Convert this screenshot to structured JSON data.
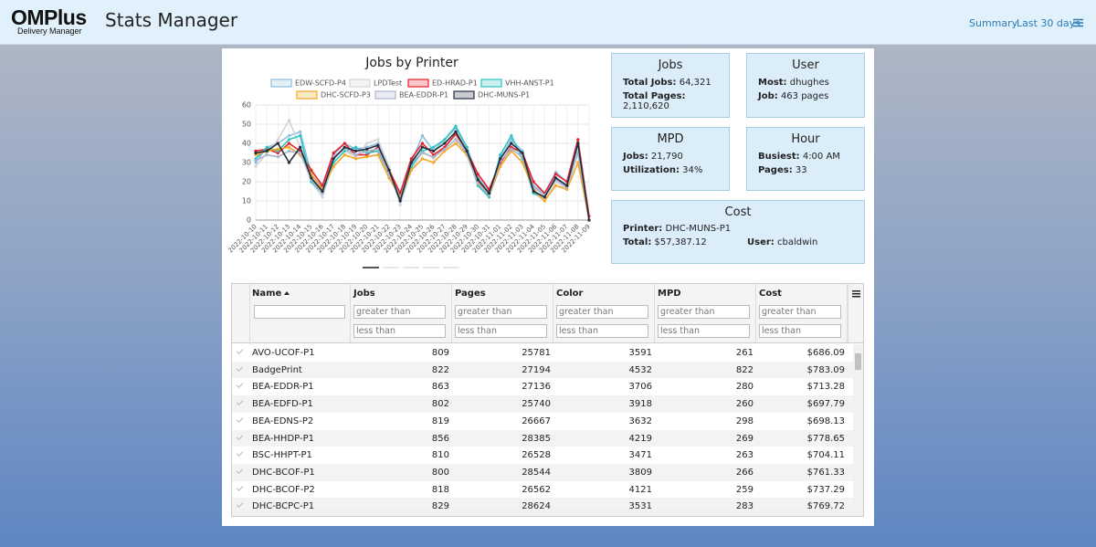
{
  "header": {
    "logo": "OMPlus",
    "logo_sub": "Delivery Manager",
    "title": "Stats Manager",
    "nav": [
      "Summary",
      "Last 30 days"
    ]
  },
  "chart_data": {
    "type": "line",
    "title": "Jobs by Printer",
    "x": [
      "2022-10-10",
      "2022-10-11",
      "2022-10-12",
      "2022-10-13",
      "2022-10-14",
      "2022-10-15",
      "2022-10-16",
      "2022-10-17",
      "2022-10-18",
      "2022-10-19",
      "2022-10-20",
      "2022-10-21",
      "2022-10-22",
      "2022-10-23",
      "2022-10-24",
      "2022-10-25",
      "2022-10-26",
      "2022-10-27",
      "2022-10-28",
      "2022-10-29",
      "2022-10-30",
      "2022-10-31",
      "2022-11-01",
      "2022-11-02",
      "2022-11-03",
      "2022-11-04",
      "2022-11-05",
      "2022-11-06",
      "2022-11-07",
      "2022-11-08",
      "2022-11-09"
    ],
    "series": [
      {
        "name": "EDW-SCFD-P4",
        "color": "#8fbfe0",
        "values": [
          30,
          38,
          40,
          44,
          46,
          24,
          17,
          34,
          40,
          37,
          38,
          40,
          27,
          12,
          30,
          44,
          36,
          42,
          48,
          38,
          22,
          15,
          32,
          42,
          36,
          18,
          14,
          25,
          20,
          42,
          0
        ]
      },
      {
        "name": "LPDTest",
        "color": "#d4d4d4",
        "values": [
          28,
          35,
          42,
          52,
          38,
          20,
          12,
          30,
          36,
          33,
          40,
          42,
          28,
          8,
          26,
          36,
          32,
          38,
          44,
          34,
          18,
          12,
          28,
          38,
          32,
          14,
          10,
          20,
          16,
          36,
          0
        ]
      },
      {
        "name": "ED-HRAD-P1",
        "color": "#e8202a",
        "values": [
          36,
          37,
          35,
          40,
          36,
          26,
          18,
          35,
          40,
          34,
          34,
          38,
          26,
          14,
          32,
          40,
          34,
          38,
          45,
          36,
          24,
          16,
          30,
          38,
          35,
          20,
          14,
          24,
          20,
          42,
          2
        ]
      },
      {
        "name": "VHH-ANST-P1",
        "color": "#2ec4c4",
        "values": [
          32,
          38,
          36,
          42,
          44,
          20,
          14,
          30,
          36,
          38,
          35,
          36,
          24,
          10,
          28,
          36,
          38,
          42,
          49,
          38,
          18,
          12,
          34,
          44,
          32,
          14,
          12,
          22,
          18,
          40,
          0
        ]
      },
      {
        "name": "DHC-SCFD-P3",
        "color": "#f5a623",
        "values": [
          34,
          36,
          37,
          38,
          34,
          24,
          16,
          28,
          34,
          32,
          33,
          34,
          22,
          12,
          26,
          32,
          30,
          36,
          40,
          34,
          20,
          13,
          28,
          36,
          30,
          16,
          10,
          18,
          16,
          30,
          0
        ]
      },
      {
        "name": "BEA-EDDR-P1",
        "color": "#a9b6cc",
        "values": [
          31,
          34,
          33,
          36,
          35,
          21,
          14,
          33,
          37,
          34,
          36,
          37,
          24,
          11,
          30,
          35,
          33,
          37,
          42,
          35,
          19,
          13,
          31,
          37,
          33,
          17,
          13,
          21,
          17,
          35,
          0
        ]
      },
      {
        "name": "DHC-MUNS-P1",
        "color": "#262b3f",
        "values": [
          35,
          36,
          40,
          30,
          38,
          22,
          15,
          32,
          38,
          36,
          37,
          39,
          26,
          10,
          30,
          38,
          36,
          40,
          46,
          36,
          21,
          14,
          32,
          40,
          35,
          15,
          12,
          22,
          18,
          40,
          0
        ]
      }
    ],
    "ylim": [
      0,
      60
    ],
    "yticks": [
      0,
      10,
      20,
      30,
      40,
      50,
      60
    ],
    "grid": true
  },
  "cards": [
    {
      "title": "Jobs",
      "items": [
        {
          "label": "Total Jobs:",
          "value": "64,321"
        },
        {
          "label": "Total Pages:",
          "value": "2,110,620"
        }
      ]
    },
    {
      "title": "User",
      "items": [
        {
          "label": "Most:",
          "value": "dhughes"
        },
        {
          "label": "Job:",
          "value": "463 pages"
        }
      ]
    },
    {
      "title": "MPD",
      "items": [
        {
          "label": "Jobs:",
          "value": "21,790"
        },
        {
          "label": "Utilization:",
          "value": "34%"
        }
      ]
    },
    {
      "title": "Hour",
      "items": [
        {
          "label": "Busiest:",
          "value": "4:00 AM"
        },
        {
          "label": "Pages:",
          "value": "33"
        }
      ]
    },
    {
      "title": "Cost",
      "items": [
        {
          "label": "Printer:",
          "value": "DHC-MUNS-P1"
        },
        {
          "label": "Total:",
          "value": "$57,387.12"
        },
        {
          "label": "User:",
          "value": "cbaldwin"
        }
      ]
    }
  ],
  "table": {
    "columns": [
      "Name",
      "Jobs",
      "Pages",
      "Color",
      "MPD",
      "Cost"
    ],
    "filter_placeholders": [
      "greater than",
      "less than"
    ],
    "rows": [
      [
        "AVO-UCOF-P1",
        809,
        25781,
        3591,
        261,
        "$686.09"
      ],
      [
        "BadgePrint",
        822,
        27194,
        4532,
        822,
        "$783.09"
      ],
      [
        "BEA-EDDR-P1",
        863,
        27136,
        3706,
        280,
        "$713.28"
      ],
      [
        "BEA-EDFD-P1",
        802,
        25740,
        3918,
        260,
        "$697.79"
      ],
      [
        "BEA-EDNS-P2",
        819,
        26667,
        3632,
        298,
        "$698.13"
      ],
      [
        "BEA-HHDP-P1",
        856,
        28385,
        4219,
        269,
        "$778.65"
      ],
      [
        "BSC-HHPT-P1",
        810,
        26528,
        3471,
        263,
        "$704.11"
      ],
      [
        "DHC-BCOF-P1",
        800,
        28544,
        3809,
        266,
        "$761.33"
      ],
      [
        "DHC-BCOF-P2",
        818,
        26562,
        4121,
        259,
        "$737.29"
      ],
      [
        "DHC-BCPC-P1",
        829,
        28624,
        3531,
        283,
        "$769.72"
      ]
    ]
  }
}
